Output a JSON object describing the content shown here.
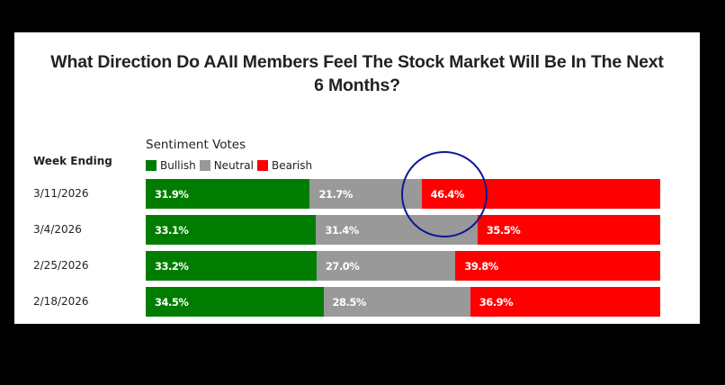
{
  "chart_data": {
    "type": "bar",
    "orientation": "horizontal",
    "stacked": true,
    "title": "What Direction Do AAII Members Feel The Stock Market Will Be In The Next 6 Months?",
    "title_lines": [
      "What Direction Do AAII Members Feel The Stock Market Will Be In The Next",
      "6 Months?"
    ],
    "row_header": "Week Ending",
    "legend_title": "Sentiment Votes",
    "legend_position": "top",
    "categories": [
      "3/11/2026",
      "3/4/2026",
      "2/25/2026",
      "2/18/2026"
    ],
    "series": [
      {
        "name": "Bullish",
        "color": "#007d00",
        "values": [
          31.9,
          33.1,
          33.2,
          34.5
        ],
        "labels": [
          "31.9%",
          "33.1%",
          "33.2%",
          "34.5%"
        ]
      },
      {
        "name": "Neutral",
        "color": "#999999",
        "values": [
          21.7,
          31.4,
          27.0,
          28.5
        ],
        "labels": [
          "21.7%",
          "31.4%",
          "27.0%",
          "28.5%"
        ]
      },
      {
        "name": "Bearish",
        "color": "#ff0000",
        "values": [
          46.4,
          35.5,
          39.8,
          36.9
        ],
        "labels": [
          "46.4%",
          "35.5%",
          "39.8%",
          "36.9%"
        ]
      }
    ],
    "annotations": [
      {
        "type": "circle",
        "target": "3/11/2026 Bearish 46.4%",
        "color": "#0b1a8f"
      }
    ],
    "grid": false,
    "xlim": [
      0,
      100
    ]
  },
  "rows": [
    {
      "label": "3/11/2026",
      "bullish": "31.9%",
      "neutral": "21.7%",
      "bearish": "46.4%",
      "b": 31.9,
      "n": 21.7,
      "r": 46.4
    },
    {
      "label": "3/4/2026",
      "bullish": "33.1%",
      "neutral": "31.4%",
      "bearish": "35.5%",
      "b": 33.1,
      "n": 31.4,
      "r": 35.5
    },
    {
      "label": "2/25/2026",
      "bullish": "33.2%",
      "neutral": "27.0%",
      "bearish": "39.8%",
      "b": 33.2,
      "n": 27.0,
      "r": 39.8
    },
    {
      "label": "2/18/2026",
      "bullish": "34.5%",
      "neutral": "28.5%",
      "bearish": "36.9%",
      "b": 34.5,
      "n": 28.5,
      "r": 36.9
    }
  ],
  "legend": {
    "title": "Sentiment Votes",
    "bullish": "Bullish",
    "neutral": "Neutral",
    "bearish": "Bearish"
  },
  "colors": {
    "bullish": "#007d00",
    "neutral": "#999999",
    "bearish": "#ff0000",
    "annotation": "#0b1a8f"
  }
}
